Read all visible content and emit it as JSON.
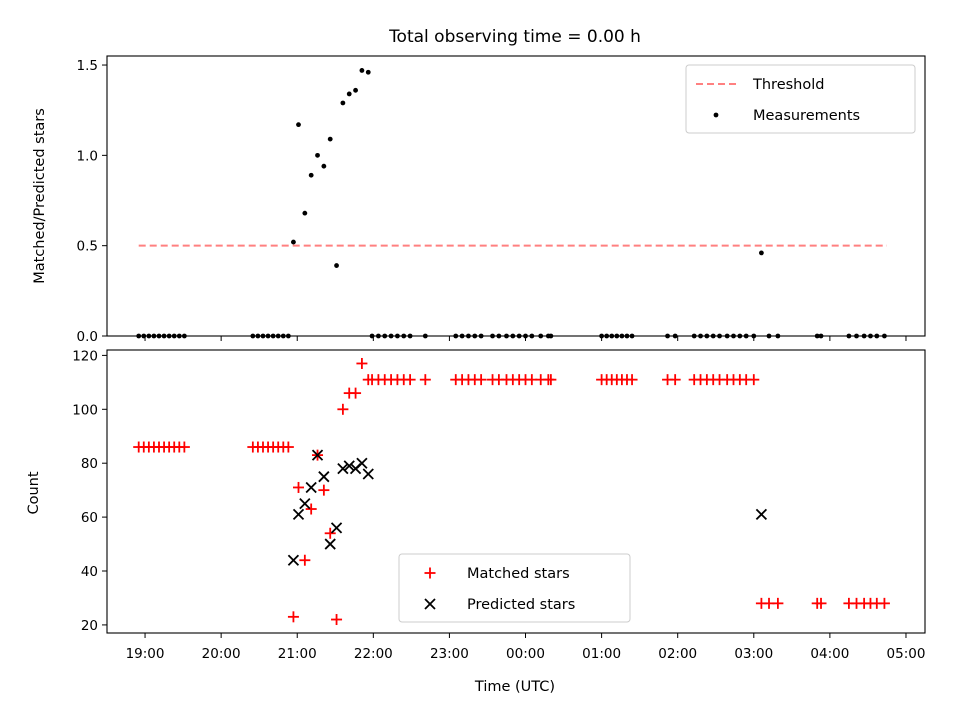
{
  "chart_data": [
    {
      "type": "scatter",
      "title": "Total observing time = 0.00 h",
      "xlabel": "",
      "ylabel": "Matched/Predicted stars",
      "ylim": [
        0,
        1.55
      ],
      "yticks": [
        "0.0",
        "0.5",
        "1.0",
        "1.5"
      ],
      "grid": false,
      "legend_position": "top-right",
      "threshold": {
        "name": "Threshold",
        "value": 0.5,
        "x_range": [
          "18:55",
          "04:45"
        ],
        "color": "#ff8080",
        "style": "dashed"
      },
      "series": [
        {
          "name": "Measurements",
          "color": "#000000",
          "x": [
            "18:55",
            "18:59",
            "19:03",
            "19:07",
            "19:11",
            "19:15",
            "19:19",
            "19:23",
            "19:27",
            "19:31",
            "20:25",
            "20:29",
            "20:33",
            "20:37",
            "20:41",
            "20:45",
            "20:49",
            "20:53",
            "20:57",
            "21:01",
            "21:06",
            "21:11",
            "21:16",
            "21:21",
            "21:26",
            "21:31",
            "21:36",
            "21:41",
            "21:46",
            "21:51",
            "21:56",
            "21:59",
            "22:04",
            "22:09",
            "22:14",
            "22:19",
            "22:24",
            "22:29",
            "22:41",
            "23:05",
            "23:10",
            "23:15",
            "23:20",
            "23:25",
            "23:34",
            "23:39",
            "23:45",
            "23:50",
            "23:55",
            "00:00",
            "00:05",
            "00:12",
            "00:18",
            "00:20",
            "01:00",
            "01:04",
            "01:08",
            "01:12",
            "01:16",
            "01:20",
            "01:24",
            "01:52",
            "01:58",
            "02:13",
            "02:18",
            "02:23",
            "02:28",
            "02:33",
            "02:39",
            "02:44",
            "02:49",
            "02:54",
            "03:00",
            "03:06",
            "03:12",
            "03:19",
            "03:50",
            "03:53",
            "04:15",
            "04:21",
            "04:27",
            "04:32",
            "04:37",
            "04:43"
          ],
          "y": [
            0,
            0,
            0,
            0,
            0,
            0,
            0,
            0,
            0,
            0,
            0,
            0,
            0,
            0,
            0,
            0,
            0,
            0,
            0.52,
            1.17,
            0.68,
            0.89,
            1.0,
            0.94,
            1.09,
            0.39,
            1.29,
            1.34,
            1.36,
            1.47,
            1.46,
            0,
            0,
            0,
            0,
            0,
            0,
            0,
            0,
            0,
            0,
            0,
            0,
            0,
            0,
            0,
            0,
            0,
            0,
            0,
            0,
            0,
            0,
            0,
            0,
            0,
            0,
            0,
            0,
            0,
            0,
            0,
            0,
            0,
            0,
            0,
            0,
            0,
            0,
            0,
            0,
            0,
            0,
            0.46,
            0,
            0,
            0,
            0,
            0,
            0,
            0,
            0,
            0,
            0
          ]
        }
      ]
    },
    {
      "type": "scatter",
      "title": "",
      "xlabel": "Time (UTC)",
      "ylabel": "Count",
      "ylim": [
        17,
        122
      ],
      "yticks": [
        "20",
        "40",
        "60",
        "80",
        "100",
        "120"
      ],
      "xlim": [
        "18:30",
        "05:15"
      ],
      "xticks": [
        "19:00",
        "20:00",
        "21:00",
        "22:00",
        "23:00",
        "00:00",
        "01:00",
        "02:00",
        "03:00",
        "04:00",
        "05:00"
      ],
      "grid": false,
      "legend_position": "lower-center",
      "series": [
        {
          "name": "Matched stars",
          "color": "#ff0000",
          "marker": "plus",
          "x": [
            "18:55",
            "18:59",
            "19:03",
            "19:07",
            "19:11",
            "19:15",
            "19:19",
            "19:23",
            "19:27",
            "19:31",
            "20:25",
            "20:29",
            "20:33",
            "20:37",
            "20:41",
            "20:45",
            "20:49",
            "20:53",
            "20:57",
            "21:01",
            "21:06",
            "21:11",
            "21:16",
            "21:21",
            "21:26",
            "21:31",
            "21:36",
            "21:41",
            "21:46",
            "21:51",
            "21:56",
            "21:59",
            "22:04",
            "22:09",
            "22:14",
            "22:19",
            "22:24",
            "22:29",
            "22:41",
            "23:05",
            "23:10",
            "23:15",
            "23:20",
            "23:25",
            "23:34",
            "23:39",
            "23:45",
            "23:50",
            "23:55",
            "00:00",
            "00:05",
            "00:12",
            "00:18",
            "00:20",
            "01:00",
            "01:04",
            "01:08",
            "01:12",
            "01:16",
            "01:20",
            "01:24",
            "01:52",
            "01:58",
            "02:13",
            "02:18",
            "02:23",
            "02:28",
            "02:33",
            "02:39",
            "02:44",
            "02:49",
            "02:54",
            "03:00",
            "03:06",
            "03:12",
            "03:19",
            "03:50",
            "03:53",
            "04:15",
            "04:21",
            "04:27",
            "04:32",
            "04:37",
            "04:43"
          ],
          "y": [
            86,
            86,
            86,
            86,
            86,
            86,
            86,
            86,
            86,
            86,
            86,
            86,
            86,
            86,
            86,
            86,
            86,
            86,
            23,
            71,
            44,
            63,
            83,
            70,
            54,
            22,
            100,
            106,
            106,
            117,
            111,
            111,
            111,
            111,
            111,
            111,
            111,
            111,
            111,
            111,
            111,
            111,
            111,
            111,
            111,
            111,
            111,
            111,
            111,
            111,
            111,
            111,
            111,
            111,
            111,
            111,
            111,
            111,
            111,
            111,
            111,
            111,
            111,
            111,
            111,
            111,
            111,
            111,
            111,
            111,
            111,
            111,
            111,
            28,
            28,
            28,
            28,
            28,
            28,
            28,
            28,
            28,
            28,
            28
          ]
        },
        {
          "name": "Predicted stars",
          "color": "#000000",
          "marker": "x",
          "x": [
            "20:57",
            "21:01",
            "21:06",
            "21:11",
            "21:16",
            "21:21",
            "21:26",
            "21:31",
            "21:36",
            "21:41",
            "21:46",
            "21:51",
            "21:56",
            "03:06"
          ],
          "y": [
            44,
            61,
            65,
            71,
            83,
            75,
            50,
            56,
            78,
            79,
            78,
            80,
            76,
            61
          ]
        }
      ]
    }
  ]
}
